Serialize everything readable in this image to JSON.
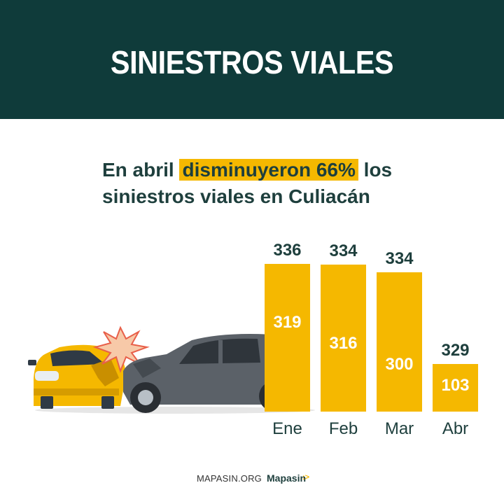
{
  "header": {
    "title": "SINIESTROS VIALES"
  },
  "subtitle": {
    "before": "En abril",
    "highlight": "disminuyeron 66%",
    "after": "los",
    "line2": "siniestros viales en Culiacán"
  },
  "chart_data": {
    "type": "bar",
    "categories": [
      "Ene",
      "Feb",
      "Mar",
      "Abr"
    ],
    "total_labels": [
      336,
      334,
      334,
      329
    ],
    "values": [
      319,
      316,
      300,
      103
    ],
    "bar_color": "#f5b800"
  },
  "footer": {
    "site": "MAPASIN.ORG",
    "brand": "Mapasin",
    "brand_mark": ":>"
  },
  "colors": {
    "header_bg": "#0f3b3a",
    "text_dark": "#1e3f3d",
    "accent": "#f5b800"
  }
}
